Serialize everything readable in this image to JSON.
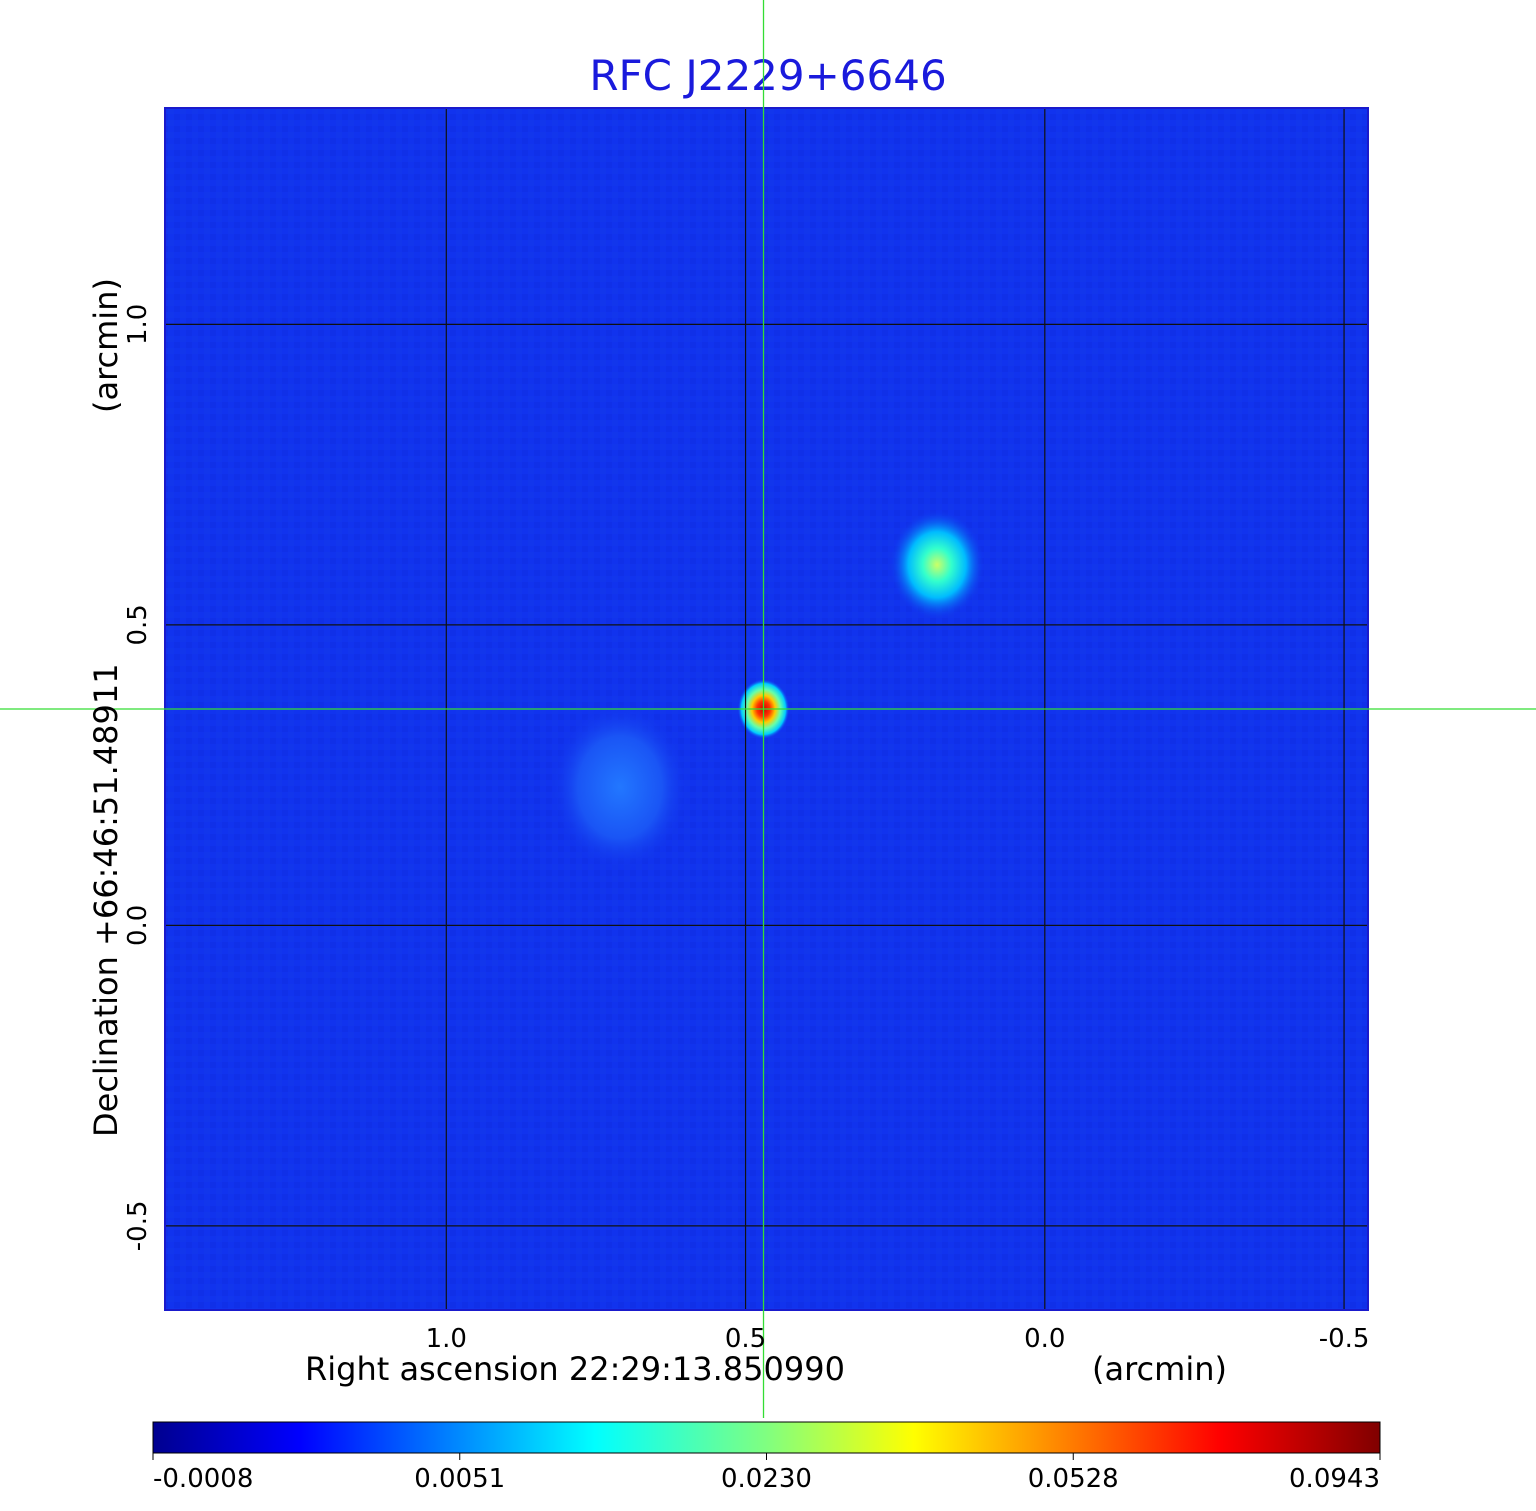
{
  "title": "RFC J2229+6646",
  "x_axis": {
    "label": "Right ascension  22:29:13.850990",
    "unit": "(arcmin)",
    "ticks": [
      "1.0",
      "0.5",
      "0.0",
      "-0.5"
    ],
    "range": [
      1.47,
      -0.54
    ]
  },
  "y_axis": {
    "label": "Declination  +66:46:51.48911",
    "unit": "(arcmin)",
    "ticks": [
      "1.0",
      "0.5",
      "0.0",
      "-0.5"
    ],
    "range": [
      -0.64,
      1.36
    ]
  },
  "colorbar": {
    "colormap": "jet",
    "ticks": [
      "-0.0008",
      "0.0051",
      "0.0230",
      "0.0528",
      "0.0943"
    ]
  },
  "crosshair": {
    "ra_offset": 0.47,
    "dec_offset": 0.36,
    "color": "#33dd33"
  },
  "sources": [
    {
      "ra_offset": 0.47,
      "dec_offset": 0.36,
      "peak_level": 1.0
    },
    {
      "ra_offset": 0.18,
      "dec_offset": 0.6,
      "peak_level": 0.5
    },
    {
      "ra_offset": 0.71,
      "dec_offset": 0.23,
      "peak_level": 0.13
    }
  ],
  "colors": {
    "background": "#1133ee",
    "title": "#1a1adc",
    "grid": "#111111"
  }
}
